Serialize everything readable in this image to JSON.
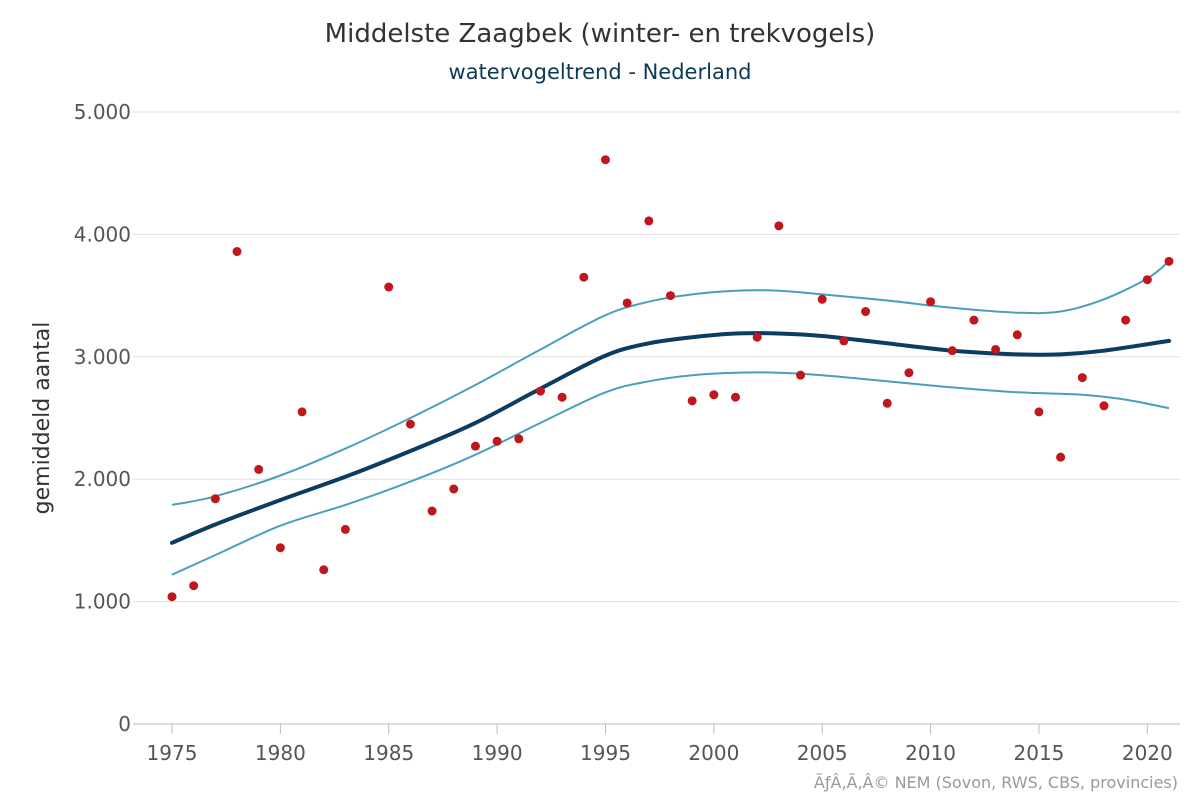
{
  "chart_data": {
    "type": "scatter",
    "title": "Middelste Zaagbek (winter- en trekvogels)",
    "subtitle": "watervogeltrend - Nederland",
    "ylabel": "gemiddeld aantal",
    "xlabel": "",
    "credits": "ÃƒÂ‚Ã‚Â© NEM (Sovon, RWS, CBS, provincies)",
    "xlim": [
      1975,
      2021
    ],
    "ylim": [
      0,
      5000
    ],
    "x_ticks": [
      "1975",
      "1980",
      "1985",
      "1990",
      "1995",
      "2000",
      "2005",
      "2010",
      "2015",
      "2020"
    ],
    "x_tick_values": [
      1975,
      1980,
      1985,
      1990,
      1995,
      2000,
      2005,
      2010,
      2015,
      2020
    ],
    "y_ticks": [
      "0",
      "1.000",
      "2.000",
      "3.000",
      "4.000",
      "5.000"
    ],
    "y_tick_values": [
      0,
      1000,
      2000,
      3000,
      4000,
      5000
    ],
    "grid": true,
    "colors": {
      "points": "#c0161d",
      "trend": "#0b3c61",
      "band": "#4a9fbf",
      "grid": "#e0e0e0",
      "axis": "#bbbbbb"
    },
    "series": [
      {
        "type": "scatter",
        "points": [
          [
            1975,
            1040
          ],
          [
            1976,
            1130
          ],
          [
            1977,
            1840
          ],
          [
            1978,
            3860
          ],
          [
            1979,
            2080
          ],
          [
            1980,
            1440
          ],
          [
            1981,
            2550
          ],
          [
            1982,
            1260
          ],
          [
            1983,
            1590
          ],
          [
            1985,
            3570
          ],
          [
            1986,
            2450
          ],
          [
            1987,
            1740
          ],
          [
            1988,
            1920
          ],
          [
            1989,
            2270
          ],
          [
            1990,
            2310
          ],
          [
            1991,
            2330
          ],
          [
            1992,
            2720
          ],
          [
            1993,
            2670
          ],
          [
            1994,
            3650
          ],
          [
            1995,
            4610
          ],
          [
            1996,
            3440
          ],
          [
            1997,
            4110
          ],
          [
            1998,
            3500
          ],
          [
            1999,
            2640
          ],
          [
            2000,
            2690
          ],
          [
            2001,
            2670
          ],
          [
            2002,
            3160
          ],
          [
            2003,
            4070
          ],
          [
            2004,
            2850
          ],
          [
            2005,
            3470
          ],
          [
            2006,
            3130
          ],
          [
            2007,
            3370
          ],
          [
            2008,
            2620
          ],
          [
            2009,
            2870
          ],
          [
            2010,
            3450
          ],
          [
            2011,
            3050
          ],
          [
            2012,
            3300
          ],
          [
            2013,
            3060
          ],
          [
            2014,
            3180
          ],
          [
            2015,
            2550
          ],
          [
            2016,
            2180
          ],
          [
            2017,
            2830
          ],
          [
            2018,
            2600
          ],
          [
            2019,
            3300
          ],
          [
            2020,
            3630
          ],
          [
            2021,
            3780
          ]
        ]
      },
      {
        "type": "line",
        "role": "trend",
        "points": [
          [
            1975,
            1480
          ],
          [
            1977,
            1630
          ],
          [
            1980,
            1830
          ],
          [
            1983,
            2020
          ],
          [
            1986,
            2230
          ],
          [
            1989,
            2460
          ],
          [
            1992,
            2740
          ],
          [
            1995,
            3010
          ],
          [
            1997,
            3110
          ],
          [
            1999,
            3160
          ],
          [
            2001,
            3190
          ],
          [
            2003,
            3190
          ],
          [
            2005,
            3170
          ],
          [
            2008,
            3110
          ],
          [
            2011,
            3050
          ],
          [
            2014,
            3020
          ],
          [
            2016,
            3020
          ],
          [
            2018,
            3050
          ],
          [
            2021,
            3130
          ]
        ]
      },
      {
        "type": "line",
        "role": "upper-bound",
        "points": [
          [
            1975,
            1790
          ],
          [
            1977,
            1860
          ],
          [
            1980,
            2030
          ],
          [
            1983,
            2250
          ],
          [
            1986,
            2500
          ],
          [
            1989,
            2770
          ],
          [
            1992,
            3060
          ],
          [
            1995,
            3340
          ],
          [
            1997,
            3450
          ],
          [
            1999,
            3510
          ],
          [
            2001,
            3540
          ],
          [
            2003,
            3540
          ],
          [
            2005,
            3510
          ],
          [
            2008,
            3460
          ],
          [
            2011,
            3400
          ],
          [
            2014,
            3360
          ],
          [
            2016,
            3370
          ],
          [
            2018,
            3470
          ],
          [
            2020,
            3640
          ],
          [
            2021,
            3780
          ]
        ]
      },
      {
        "type": "line",
        "role": "lower-bound",
        "points": [
          [
            1975,
            1220
          ],
          [
            1977,
            1380
          ],
          [
            1980,
            1620
          ],
          [
            1983,
            1790
          ],
          [
            1986,
            1980
          ],
          [
            1989,
            2200
          ],
          [
            1992,
            2460
          ],
          [
            1995,
            2710
          ],
          [
            1997,
            2800
          ],
          [
            1999,
            2850
          ],
          [
            2001,
            2870
          ],
          [
            2003,
            2870
          ],
          [
            2005,
            2850
          ],
          [
            2008,
            2800
          ],
          [
            2011,
            2750
          ],
          [
            2014,
            2710
          ],
          [
            2017,
            2690
          ],
          [
            2019,
            2650
          ],
          [
            2021,
            2580
          ]
        ]
      }
    ]
  }
}
